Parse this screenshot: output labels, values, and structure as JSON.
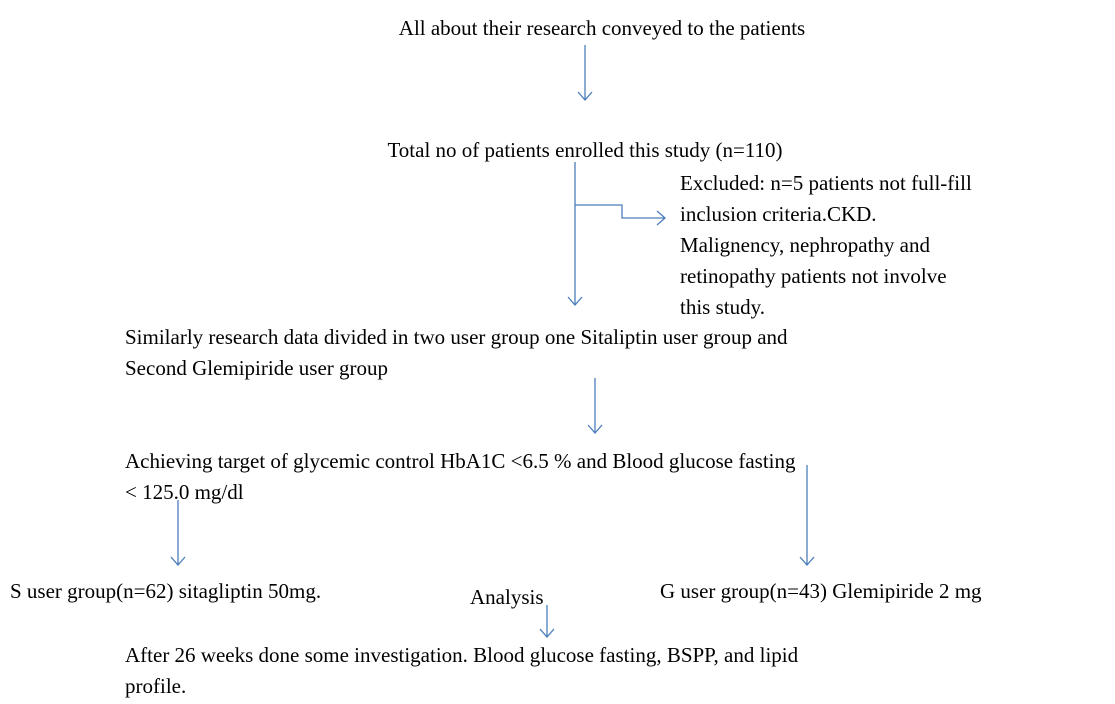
{
  "nodes": [
    {
      "lines": [
        "All about their research conveyed to the patients"
      ]
    },
    {
      "lines": [
        "Total no of patients enrolled this study (n=110)"
      ]
    },
    {
      "lines": [
        "Excluded: n=5 patients not full-fill",
        "inclusion criteria.CKD.",
        "Malignency, nephropathy and",
        "retinopathy patients not involve",
        "this study."
      ]
    },
    {
      "lines": [
        "Similarly research data divided in two user group one Sitaliptin user group and",
        "Second Glemipiride user group"
      ]
    },
    {
      "lines": [
        "Achieving target of glycemic control HbA1C <6.5 % and Blood glucose fasting",
        "< 125.0 mg/dl"
      ]
    },
    {
      "lines": [
        "S user group(n=62) sitagliptin 50mg."
      ]
    },
    {
      "lines": [
        "Analysis"
      ]
    },
    {
      "lines": [
        "G user group(n=43) Glemipiride 2 mg"
      ]
    },
    {
      "lines": [
        "After 26 weeks done some investigation. Blood glucose fasting, BSPP, and lipid",
        "profile."
      ]
    }
  ]
}
